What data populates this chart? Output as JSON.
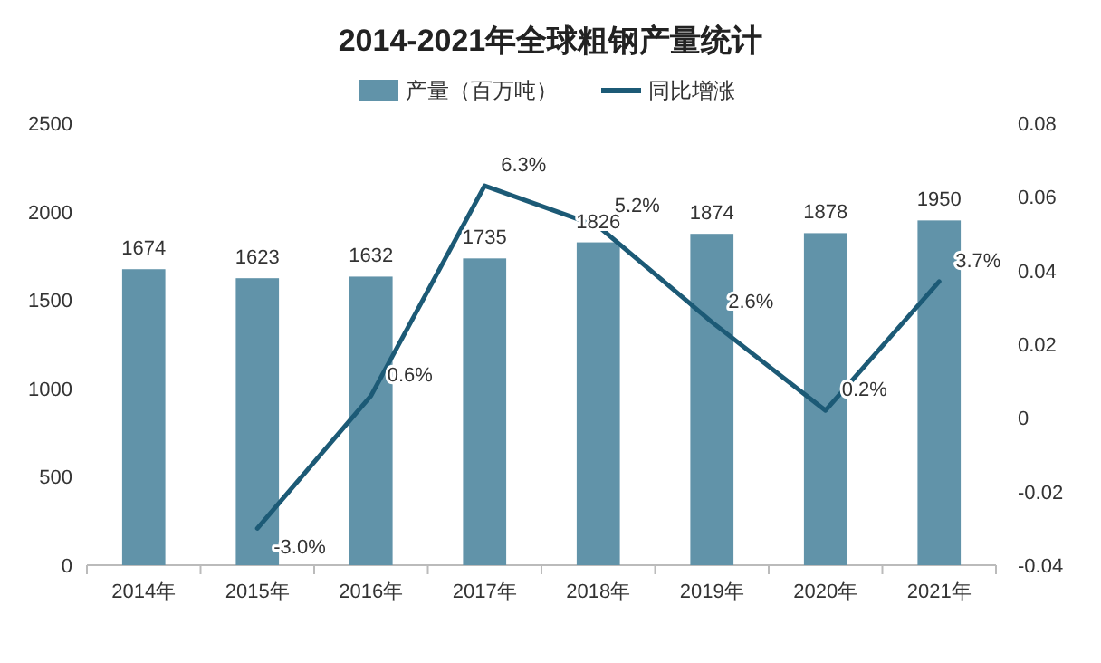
{
  "chart_data": {
    "type": "bar",
    "title": "2014-2021年全球粗钢产量统计",
    "categories": [
      "2014年",
      "2015年",
      "2016年",
      "2017年",
      "2018年",
      "2019年",
      "2020年",
      "2021年"
    ],
    "series": [
      {
        "name": "产量（百万吨）",
        "color": "#6193a9",
        "values": [
          1674,
          1623,
          1632,
          1735,
          1826,
          1874,
          1878,
          1950
        ],
        "value_labels": [
          "1674",
          "1623",
          "1632",
          "1735",
          "1826",
          "1874",
          "1878",
          "1950"
        ]
      },
      {
        "name": "同比增涨",
        "type": "line",
        "axis": "y2",
        "color": "#1c5a76",
        "values": [
          null,
          -0.03,
          0.006,
          0.063,
          0.052,
          0.026,
          0.002,
          0.037
        ],
        "value_labels": [
          null,
          "-3.0%",
          "0.6%",
          "6.3%",
          "5.2%",
          "2.6%",
          "0.2%",
          "3.7%"
        ]
      }
    ],
    "ylim": [
      0,
      2500
    ],
    "yticks": [
      0,
      500,
      1000,
      1500,
      2000,
      2500
    ],
    "y2lim": [
      -0.04,
      0.08
    ],
    "y2ticks": [
      -0.04,
      -0.02,
      0,
      0.02,
      0.04,
      0.06,
      0.08
    ],
    "legend": "top",
    "grid": false
  }
}
